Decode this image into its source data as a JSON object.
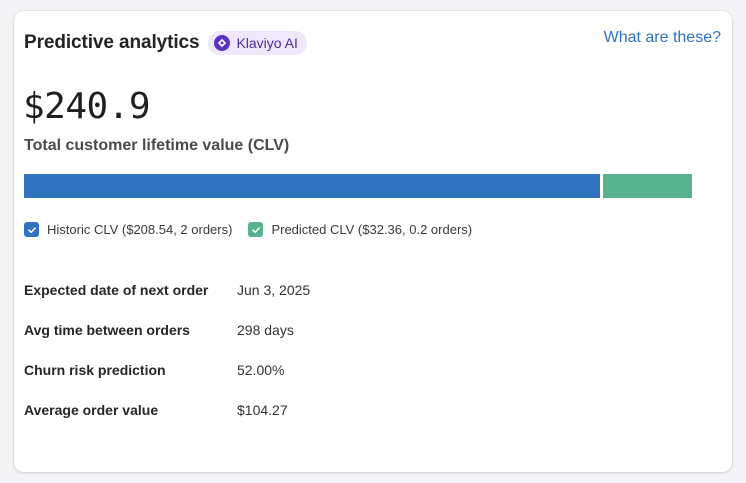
{
  "header": {
    "title": "Predictive analytics",
    "badge_label": "Klaviyo AI",
    "badge_icon": "klaviyo-ai-sparkle-icon",
    "help_link": "What are these?"
  },
  "clv": {
    "total_value": "$240.9",
    "total_label": "Total customer lifetime value (CLV)",
    "historic_value": 208.54,
    "predicted_value": 32.36,
    "colors": {
      "historic": "#3273c0",
      "predicted": "#56b38d"
    }
  },
  "legend": [
    {
      "label": "Historic CLV ($208.54, 2 orders)",
      "checked": true,
      "color": "#3273c0"
    },
    {
      "label": "Predicted CLV ($32.36, 0.2 orders)",
      "checked": true,
      "color": "#56b38d"
    }
  ],
  "stats": [
    {
      "label": "Expected date of next order",
      "value": "Jun 3, 2025"
    },
    {
      "label": "Avg time between orders",
      "value": "298 days"
    },
    {
      "label": "Churn risk prediction",
      "value": "52.00%"
    },
    {
      "label": "Average order value",
      "value": "$104.27"
    }
  ]
}
